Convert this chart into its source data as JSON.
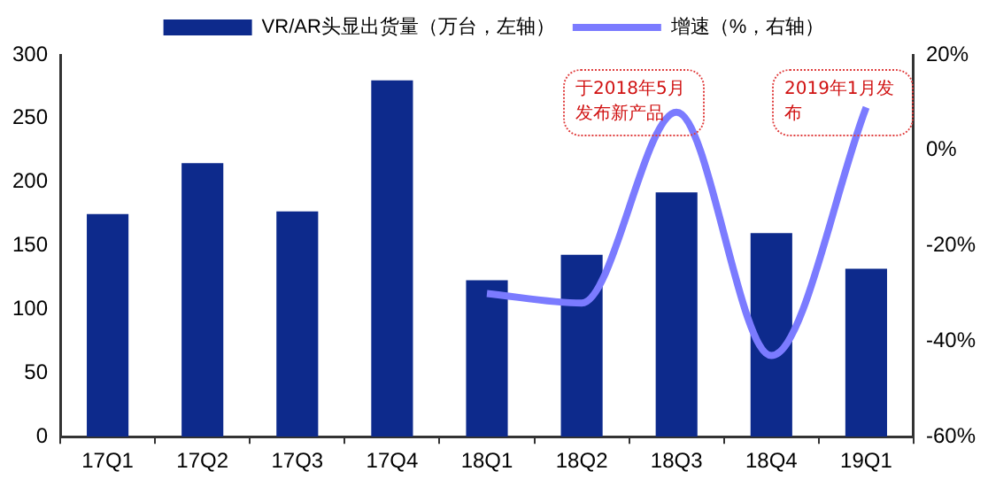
{
  "chart_data": {
    "type": "bar",
    "categories": [
      "17Q1",
      "17Q2",
      "17Q3",
      "17Q4",
      "18Q1",
      "18Q2",
      "18Q3",
      "18Q4",
      "19Q1"
    ],
    "series": [
      {
        "name": "VR/AR头显出货量（万台，左轴）",
        "color": "#0d2a8c",
        "values": [
          175,
          215,
          177,
          280,
          123,
          143,
          192,
          160,
          132
        ]
      },
      {
        "name": "增速（%，右轴）",
        "type": "line",
        "axis": "y2",
        "color": "#7b7bff",
        "values": [
          null,
          null,
          null,
          null,
          -30,
          -32,
          8,
          -43,
          9
        ]
      }
    ],
    "ylim": [
      0,
      300
    ],
    "yticks": [
      0,
      50,
      100,
      150,
      200,
      250,
      300
    ],
    "y2lim": [
      -60,
      20
    ],
    "y2ticks": [
      {
        "value": -60,
        "label": "-60%"
      },
      {
        "value": -40,
        "label": "-40%"
      },
      {
        "value": -20,
        "label": "-20%"
      },
      {
        "value": 0,
        "label": "0%"
      },
      {
        "value": 20,
        "label": "20%"
      }
    ],
    "annotations": [
      "于2018年5月发布新产品",
      "2019年1月发布"
    ],
    "grid": false,
    "legend": "top",
    "marker": "none"
  }
}
